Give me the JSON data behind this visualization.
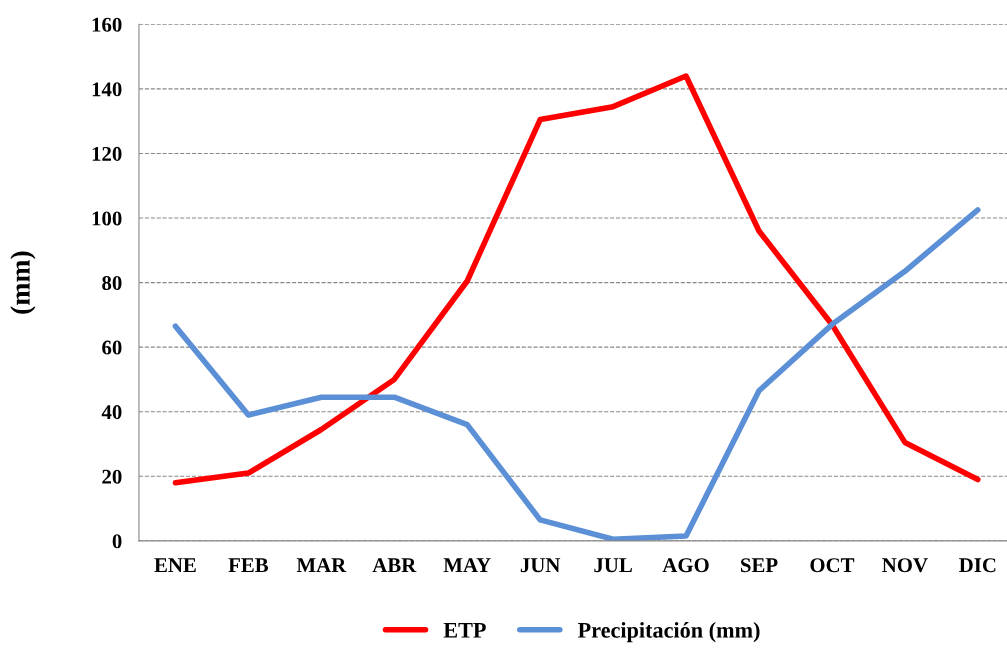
{
  "chart_data": {
    "type": "line",
    "ylabel": "(mm)",
    "categories": [
      "ENE",
      "FEB",
      "MAR",
      "ABR",
      "MAY",
      "JUN",
      "JUL",
      "AGO",
      "SEP",
      "OCT",
      "NOV",
      "DIC"
    ],
    "series": [
      {
        "name": "ETP",
        "color": "#ff0000",
        "values": [
          18,
          21,
          34.5,
          50,
          80.5,
          130.5,
          134.5,
          144,
          96,
          67,
          30.5,
          19
        ]
      },
      {
        "name": "Precipitación (mm)",
        "color": "#5b8fd6",
        "values": [
          66.5,
          39,
          44.5,
          44.5,
          36,
          6.5,
          0.5,
          1.5,
          46.5,
          67,
          83.5,
          102.5
        ]
      }
    ],
    "ylim": [
      0,
      160
    ],
    "yticks": [
      0,
      20,
      40,
      60,
      80,
      100,
      120,
      140,
      160
    ],
    "grid": "y",
    "legend": "bottom",
    "marker": "none",
    "line_style": "solid"
  }
}
